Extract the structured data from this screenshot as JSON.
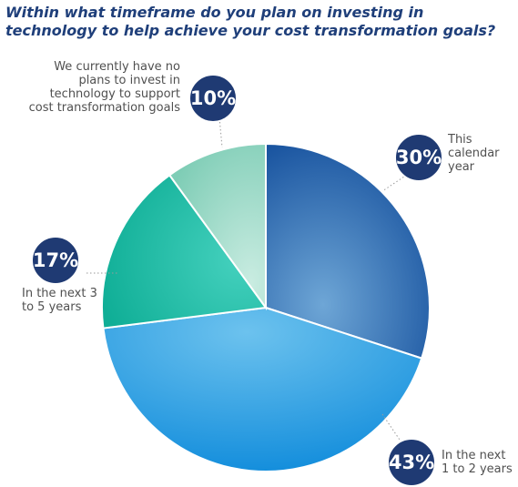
{
  "title": "Within what timeframe do you plan on investing in technology to help achieve your cost transformation goals?",
  "chart_data": {
    "type": "pie",
    "title": "Within what timeframe do you plan on investing in technology to help achieve your cost transformation goals?",
    "slices": [
      {
        "label": "This calendar year",
        "value": 30,
        "display": "30%",
        "color": "#1f5aa6"
      },
      {
        "label": "In the next 1 to 2 years",
        "value": 43,
        "display": "43%",
        "color": "#2b9be0"
      },
      {
        "label": "In the next 3 to 5 years",
        "value": 17,
        "display": "17%",
        "color": "#25c0a8"
      },
      {
        "label": "We currently have no plans to invest in technology to support cost transformation goals",
        "value": 10,
        "display": "10%",
        "color": "#9fdac8"
      }
    ]
  }
}
